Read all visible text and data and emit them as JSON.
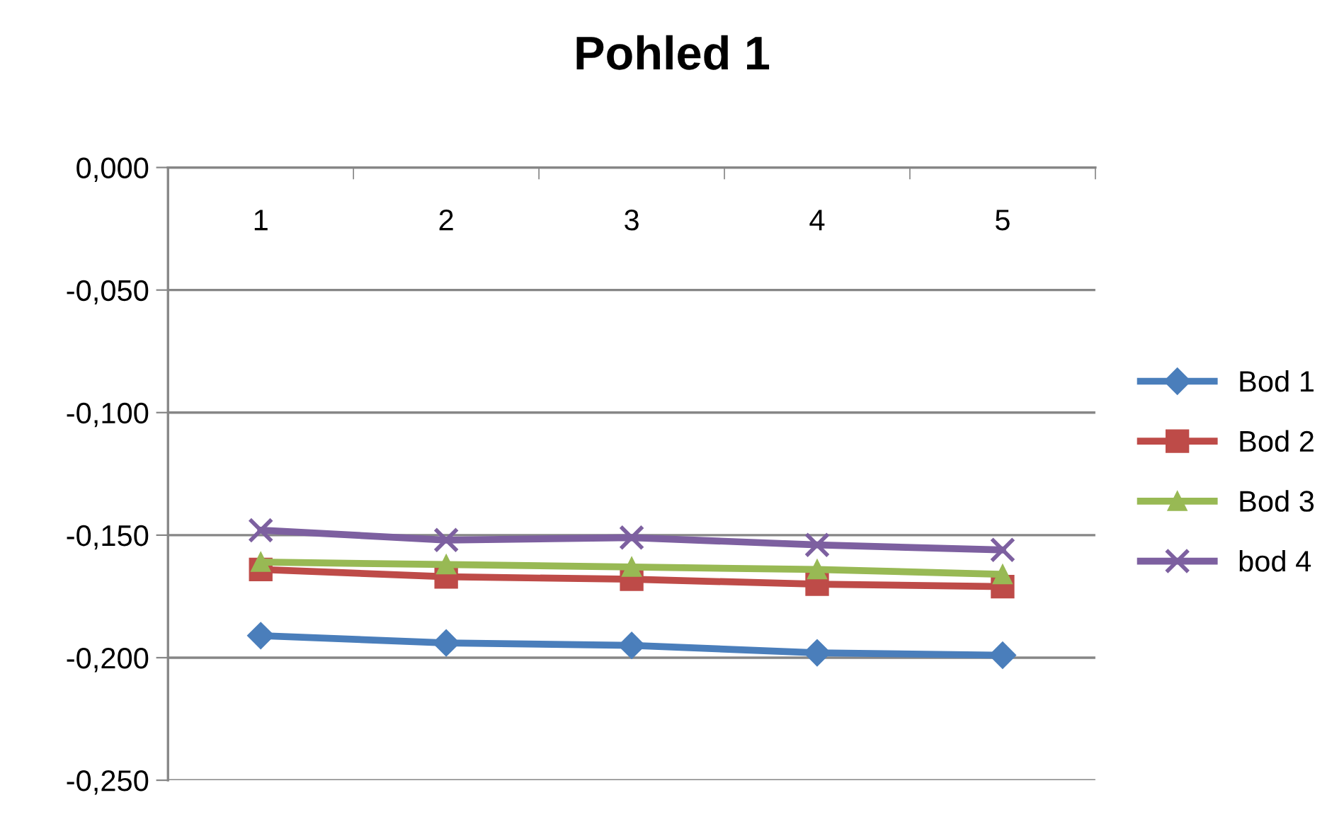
{
  "chart_data": {
    "type": "line",
    "title": "Pohled 1",
    "categories": [
      "1",
      "2",
      "3",
      "4",
      "5"
    ],
    "series": [
      {
        "name": "Bod 1",
        "color": "#4a7ebb",
        "marker": "diamond",
        "values": [
          -0.191,
          -0.194,
          -0.195,
          -0.198,
          -0.199
        ]
      },
      {
        "name": "Bod 2",
        "color": "#be4b48",
        "marker": "square",
        "values": [
          -0.164,
          -0.167,
          -0.168,
          -0.17,
          -0.171
        ]
      },
      {
        "name": "Bod 3",
        "color": "#98b954",
        "marker": "triangle",
        "values": [
          -0.161,
          -0.162,
          -0.163,
          -0.164,
          -0.166
        ]
      },
      {
        "name": "bod 4",
        "color": "#7d60a0",
        "marker": "cross",
        "values": [
          -0.148,
          -0.152,
          -0.151,
          -0.154,
          -0.156
        ]
      }
    ],
    "ylim": [
      -0.25,
      0
    ],
    "yticks": [
      {
        "value": -0.25,
        "label": "-0,250"
      },
      {
        "value": -0.2,
        "label": "-0,200"
      },
      {
        "value": -0.15,
        "label": "-0,150"
      },
      {
        "value": -0.1,
        "label": "-0,100"
      },
      {
        "value": -0.05,
        "label": "-0,050"
      },
      {
        "value": 0,
        "label": "0,000"
      }
    ],
    "grid": "y",
    "legend": "right",
    "line_style": "solid"
  }
}
